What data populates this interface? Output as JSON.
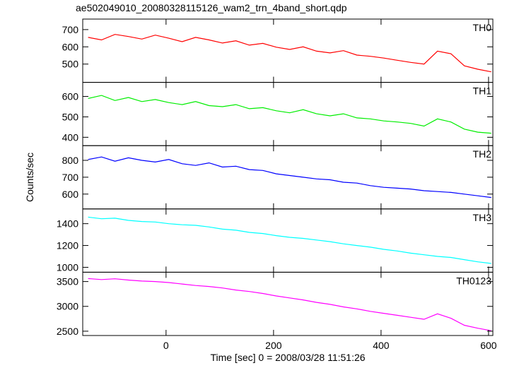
{
  "title": "ae502049010_20080328115126_wam2_trn_4band_short.qdp",
  "xlabel": "Time [sec] 0 = 2008/03/28 11:51:26",
  "ylabel": "Counts/sec",
  "chart_data": [
    {
      "type": "line",
      "label": "TH0",
      "color": "#ff0000",
      "x": [
        -145,
        -120,
        -95,
        -70,
        -45,
        -20,
        5,
        30,
        55,
        80,
        105,
        130,
        155,
        180,
        205,
        230,
        255,
        280,
        305,
        330,
        355,
        380,
        405,
        430,
        455,
        480,
        505,
        530,
        555,
        580,
        605
      ],
      "values": [
        655,
        640,
        672,
        660,
        645,
        668,
        650,
        630,
        655,
        640,
        622,
        635,
        610,
        620,
        598,
        585,
        600,
        575,
        565,
        578,
        552,
        545,
        535,
        522,
        510,
        500,
        575,
        560,
        490,
        470,
        455
      ],
      "xlim": [
        -155,
        608
      ],
      "xticks": [
        0,
        200,
        400,
        600
      ],
      "ylim": [
        394,
        761
      ],
      "yticks": [
        500,
        600,
        700
      ]
    },
    {
      "type": "line",
      "label": "TH1",
      "color": "#00ee00",
      "x": [
        -145,
        -120,
        -95,
        -70,
        -45,
        -20,
        5,
        30,
        55,
        80,
        105,
        130,
        155,
        180,
        205,
        230,
        255,
        280,
        305,
        330,
        355,
        380,
        405,
        430,
        455,
        480,
        505,
        530,
        555,
        580,
        605
      ],
      "values": [
        590,
        605,
        580,
        595,
        575,
        585,
        570,
        560,
        575,
        555,
        550,
        560,
        540,
        545,
        530,
        520,
        535,
        515,
        505,
        515,
        495,
        490,
        480,
        475,
        468,
        455,
        490,
        475,
        440,
        425,
        420
      ],
      "xlim": [
        -155,
        608
      ],
      "xticks": [
        0,
        200,
        400,
        600
      ],
      "ylim": [
        359,
        669
      ],
      "yticks": [
        400,
        500,
        600
      ]
    },
    {
      "type": "line",
      "label": "TH2",
      "color": "#0000ff",
      "x": [
        -145,
        -120,
        -95,
        -70,
        -45,
        -20,
        5,
        30,
        55,
        80,
        105,
        130,
        155,
        180,
        205,
        230,
        255,
        280,
        305,
        330,
        355,
        380,
        405,
        430,
        455,
        480,
        505,
        530,
        555,
        580,
        605
      ],
      "values": [
        805,
        820,
        795,
        815,
        800,
        790,
        805,
        780,
        770,
        785,
        760,
        765,
        745,
        740,
        720,
        710,
        700,
        690,
        685,
        670,
        665,
        650,
        640,
        635,
        630,
        620,
        615,
        610,
        600,
        590,
        580
      ],
      "xlim": [
        -155,
        608
      ],
      "xticks": [
        0,
        200,
        400,
        600
      ],
      "ylim": [
        512,
        887
      ],
      "yticks": [
        600,
        700,
        800
      ]
    },
    {
      "type": "line",
      "label": "TH3",
      "color": "#00ffff",
      "x": [
        -145,
        -120,
        -95,
        -70,
        -45,
        -20,
        5,
        30,
        55,
        80,
        105,
        130,
        155,
        180,
        205,
        230,
        255,
        280,
        305,
        330,
        355,
        380,
        405,
        430,
        455,
        480,
        505,
        530,
        555,
        580,
        605
      ],
      "values": [
        1460,
        1445,
        1450,
        1430,
        1420,
        1415,
        1400,
        1390,
        1385,
        1370,
        1350,
        1340,
        1320,
        1310,
        1290,
        1275,
        1265,
        1250,
        1235,
        1215,
        1200,
        1185,
        1165,
        1150,
        1130,
        1115,
        1100,
        1090,
        1070,
        1050,
        1035
      ],
      "xlim": [
        -155,
        608
      ],
      "xticks": [
        0,
        200,
        400,
        600
      ],
      "ylim": [
        955,
        1535
      ],
      "yticks": [
        1000,
        1200,
        1400
      ]
    },
    {
      "type": "line",
      "label": "TH0123",
      "color": "#ff00ff",
      "x": [
        -145,
        -120,
        -95,
        -70,
        -45,
        -20,
        5,
        30,
        55,
        80,
        105,
        130,
        155,
        180,
        205,
        230,
        255,
        280,
        305,
        330,
        355,
        380,
        405,
        430,
        455,
        480,
        505,
        530,
        555,
        580,
        605
      ],
      "values": [
        3560,
        3540,
        3555,
        3530,
        3510,
        3500,
        3480,
        3450,
        3420,
        3400,
        3370,
        3330,
        3300,
        3260,
        3210,
        3170,
        3130,
        3080,
        3040,
        2990,
        2950,
        2900,
        2860,
        2820,
        2780,
        2740,
        2850,
        2760,
        2620,
        2560,
        2510
      ],
      "xlim": [
        -155,
        608
      ],
      "xticks": [
        0,
        200,
        400,
        600
      ],
      "ylim": [
        2413,
        3688
      ],
      "yticks": [
        2500,
        3000,
        3500
      ]
    }
  ]
}
